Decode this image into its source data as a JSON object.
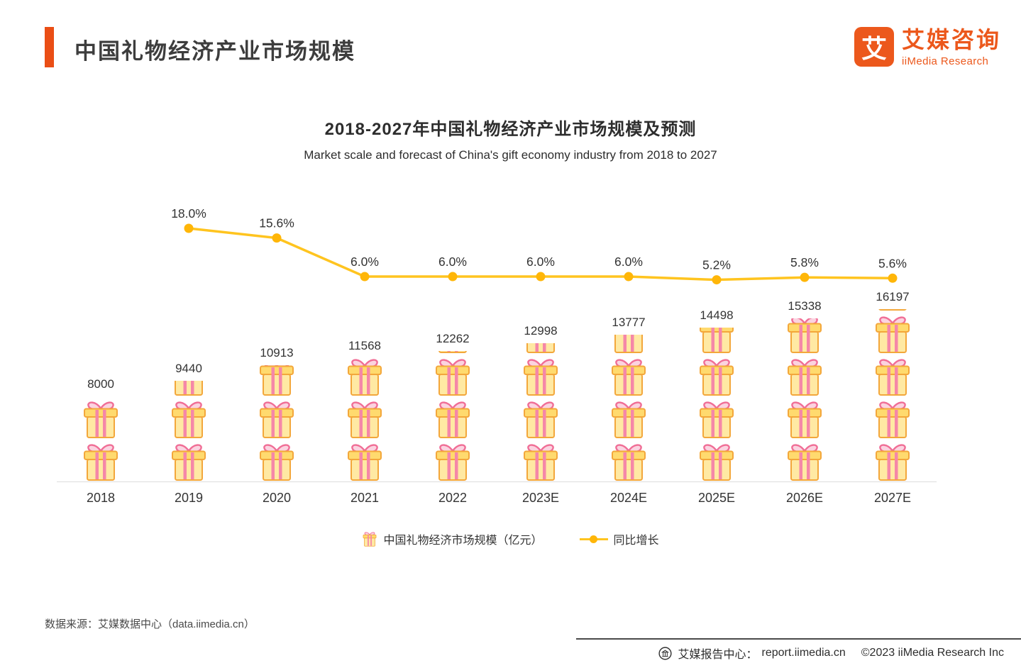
{
  "header": {
    "title": "中国礼物经济产业市场规模",
    "accent_color": "#EA4E15",
    "brand": {
      "logo_char": "艾",
      "name_cn": "艾媒咨询",
      "name_en": "iiMedia Research"
    }
  },
  "chart_data": {
    "type": "bar",
    "title": "2018-2027年中国礼物经济产业市场规模及预测",
    "subtitle": "Market scale and forecast of China's gift economy industry from 2018 to 2027",
    "categories": [
      "2018",
      "2019",
      "2020",
      "2021",
      "2022",
      "2023E",
      "2024E",
      "2025E",
      "2026E",
      "2027E"
    ],
    "series": [
      {
        "name": "中国礼物经济市场规模（亿元）",
        "type": "bar",
        "unit": "亿元",
        "values": [
          8000,
          9440,
          10913,
          11568,
          12262,
          12998,
          13777,
          14498,
          15338,
          16197
        ]
      },
      {
        "name": "同比增长",
        "type": "line",
        "values": [
          null,
          18.0,
          15.6,
          6.0,
          6.0,
          6.0,
          6.0,
          5.2,
          5.8,
          5.6
        ],
        "labels": [
          "",
          "18.0%",
          "15.6%",
          "6.0%",
          "6.0%",
          "6.0%",
          "6.0%",
          "5.2%",
          "5.8%",
          "5.6%"
        ]
      }
    ],
    "legend_position": "bottom",
    "grid": false,
    "colors": {
      "line": "#FFC41F",
      "marker": "#FFB608",
      "gift_body": "#FFE9A3",
      "gift_lid": "#FFDA6E",
      "gift_stripe": "#F587A8",
      "gift_outline": "#F3A73B",
      "bow_fill": "#FBD3E0",
      "bow_stroke": "#F06E96"
    }
  },
  "legend": {
    "bar_label": "中国礼物经济市场规模（亿元）",
    "line_label": "同比增长"
  },
  "footer": {
    "source": "数据来源：艾媒数据中心（data.iimedia.cn）",
    "report_label": "艾媒报告中心：",
    "report_url": "report.iimedia.cn",
    "copyright": "©2023  iiMedia Research Inc"
  }
}
